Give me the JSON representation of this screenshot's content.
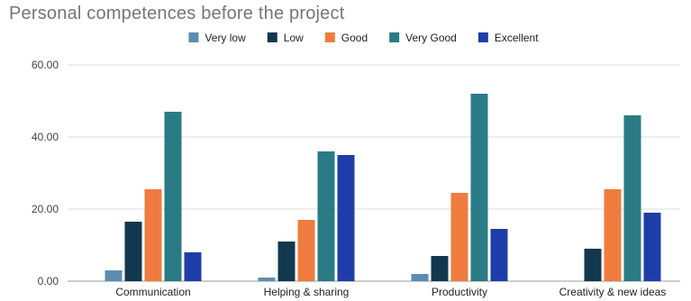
{
  "chart_data": {
    "type": "bar",
    "title": "Personal competences before the project",
    "xlabel": "",
    "ylabel": "",
    "ylim": [
      0,
      60
    ],
    "yticks": [
      "0.00",
      "20.00",
      "40.00",
      "60.00"
    ],
    "grid": true,
    "legend_position": "top",
    "categories": [
      "Communication",
      "Helping & sharing",
      "Productivity",
      "Creativity & new ideas"
    ],
    "series": [
      {
        "name": "Very low",
        "color": "#5b8db0",
        "values": [
          3,
          1,
          2,
          0
        ]
      },
      {
        "name": "Low",
        "color": "#12384f",
        "values": [
          16.5,
          11,
          7,
          9
        ]
      },
      {
        "name": "Good",
        "color": "#f07b3f",
        "values": [
          25.5,
          17,
          24.5,
          25.5
        ]
      },
      {
        "name": "Very Good",
        "color": "#2a7b86",
        "values": [
          47,
          36,
          52,
          46
        ]
      },
      {
        "name": "Excellent",
        "color": "#1f3da8",
        "values": [
          8,
          35,
          14.5,
          19
        ]
      }
    ]
  }
}
